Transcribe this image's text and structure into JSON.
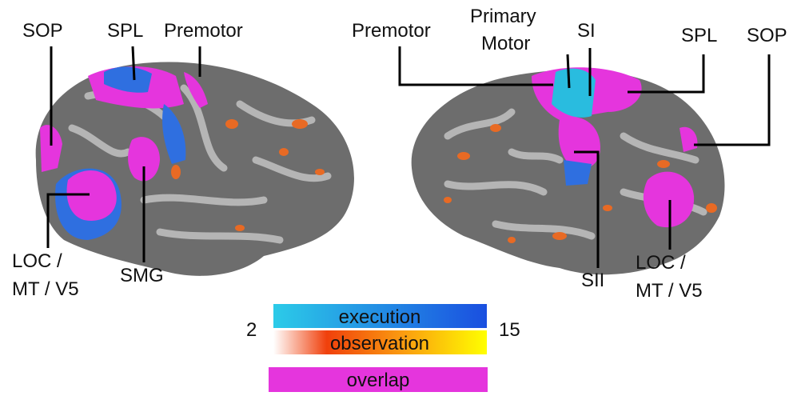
{
  "left_brain": {
    "labels": {
      "sop": "SOP",
      "spl": "SPL",
      "premotor": "Premotor",
      "loc": [
        "LOC /",
        "MT / V5"
      ],
      "smg": "SMG"
    }
  },
  "right_brain": {
    "labels": {
      "premotor": "Premotor",
      "primary_motor": [
        "Primary",
        "Motor"
      ],
      "si": "SI",
      "spl": "SPL",
      "sop": "SOP",
      "sii": "SII",
      "loc": [
        "LOC /",
        "MT / V5"
      ]
    }
  },
  "legend": {
    "min": "2",
    "max": "15",
    "execution": "execution",
    "observation": "observation",
    "overlap": "overlap"
  }
}
